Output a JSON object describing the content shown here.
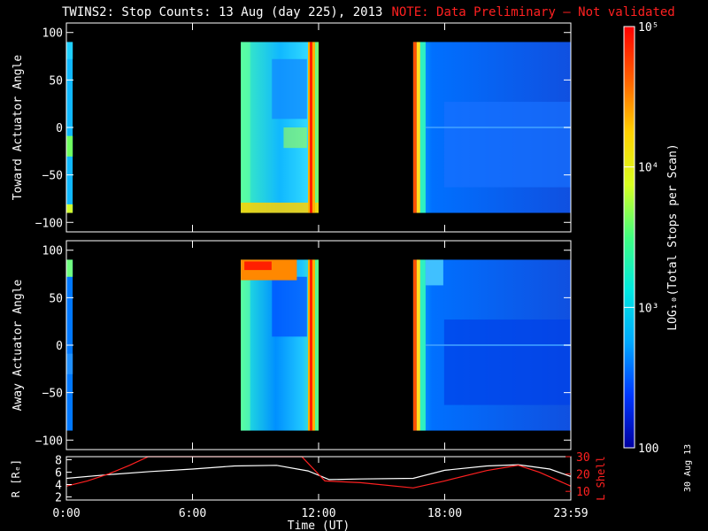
{
  "header": {
    "title": "TWINS2: Stop Counts: 13 Aug (day 225), 2013",
    "note": "NOTE: Data Preliminary – Not validated"
  },
  "side_stamp": "30 Aug 13",
  "colors": {
    "background": "#000000",
    "axis": "#ffffff",
    "note": "#ff2020",
    "r_line": "#ffffff",
    "l_line": "#ff2020"
  },
  "chart_data": [
    {
      "type": "heatmap",
      "panel": "toward",
      "ylabel": "Toward Actuator Angle",
      "ylim": [
        -110,
        110
      ],
      "yticks": [
        100,
        50,
        0,
        -50,
        -100
      ],
      "ytick_labels": [
        "100",
        "50",
        "0",
        "−50",
        "−100"
      ],
      "xlim": [
        0,
        24
      ],
      "data_blocks_hours": [
        [
          0.0,
          0.3
        ],
        [
          8.3,
          12.0
        ],
        [
          16.5,
          24.0
        ]
      ],
      "angle_coverage": [
        -90,
        90
      ]
    },
    {
      "type": "heatmap",
      "panel": "away",
      "ylabel": "Away Actuator Angle",
      "ylim": [
        -110,
        110
      ],
      "yticks": [
        100,
        50,
        0,
        -50,
        -100
      ],
      "ytick_labels": [
        "100",
        "50",
        "0",
        "−50",
        "−100"
      ],
      "xlim": [
        0,
        24
      ],
      "data_blocks_hours": [
        [
          0.0,
          0.3
        ],
        [
          8.3,
          12.0
        ],
        [
          16.5,
          24.0
        ]
      ],
      "angle_coverage": [
        -90,
        90
      ]
    },
    {
      "type": "line",
      "panel": "orbit",
      "ylabel_left": "R [Rₑ]",
      "ylabel_right": "L Shell",
      "xlabel": "Time (UT)",
      "xlim": [
        0,
        24
      ],
      "xticks": [
        0,
        6,
        12,
        18,
        24
      ],
      "xtick_labels": [
        "0:00",
        "6:00",
        "12:00",
        "18:00",
        "23:59"
      ],
      "left_ylim": [
        1.5,
        8.5
      ],
      "left_yticks": [
        2,
        4,
        6,
        8
      ],
      "left_ytick_labels": [
        "2",
        "4",
        "6",
        "8"
      ],
      "right_ylim": [
        5,
        30
      ],
      "right_yticks": [
        10,
        20,
        30
      ],
      "right_ytick_labels": [
        "10",
        "20",
        "30"
      ],
      "series": [
        {
          "axis": "left",
          "color": "#ffffff",
          "x": [
            0,
            2,
            4,
            6,
            8,
            10,
            11.5,
            12.5,
            14,
            16.5,
            18,
            20,
            21.5,
            23,
            24
          ],
          "y": [
            5.0,
            5.6,
            6.1,
            6.5,
            7.0,
            7.1,
            6.2,
            4.8,
            4.9,
            5.0,
            6.3,
            7.0,
            7.2,
            6.5,
            5.3
          ]
        },
        {
          "axis": "right",
          "color": "#ff2020",
          "x": [
            0,
            1,
            2,
            3,
            3.9,
            11.2,
            12.3,
            14,
            16.5,
            18,
            20,
            21.5,
            22.5,
            24
          ],
          "y": [
            13,
            16,
            20,
            25,
            30,
            30,
            16,
            15,
            12,
            16,
            22,
            25,
            21,
            13
          ]
        }
      ]
    },
    {
      "type": "colorbar",
      "label": "LOG₁₀(Total Stops per Scan)",
      "range": [
        100,
        100000
      ],
      "tick_values": [
        100,
        1000,
        10000,
        100000
      ],
      "tick_labels": [
        "100",
        "10³",
        "10⁴",
        "10⁵"
      ],
      "log": true,
      "colormap": [
        "#0000a0",
        "#0038ff",
        "#00a8ff",
        "#00e8e0",
        "#40ff80",
        "#d8ff20",
        "#ffd000",
        "#ff6000",
        "#ff0000"
      ]
    }
  ]
}
